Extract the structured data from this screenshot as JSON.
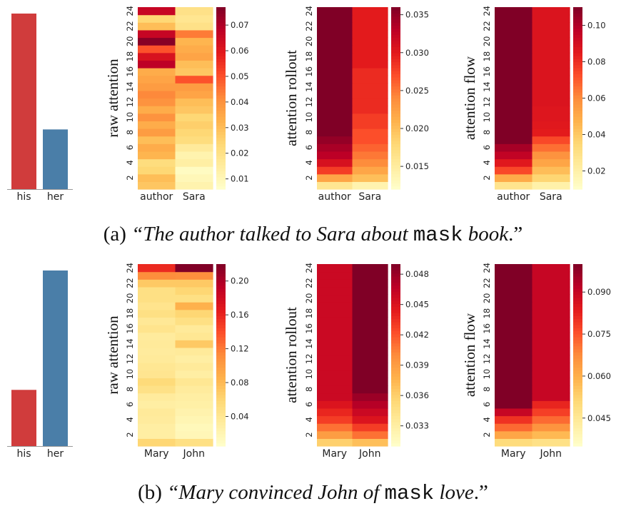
{
  "colormap": [
    "#ffffcc",
    "#ffeda0",
    "#fed976",
    "#feb24c",
    "#fd8d3c",
    "#fc4e2a",
    "#e31a1c",
    "#bd0026",
    "#800026"
  ],
  "colors": {
    "his": "#d03c3c",
    "her": "#4a7ea8"
  },
  "captions": [
    {
      "label": "(a)",
      "open_quote": "“",
      "before_mask": "The author talked to Sara about",
      "mask": "mask",
      "after_mask": "book",
      "close": ".”"
    },
    {
      "label": "(b)",
      "open_quote": "“",
      "before_mask": "Mary convinced John of",
      "mask": "mask",
      "after_mask": "love",
      "close": ".”"
    }
  ],
  "chart_data": [
    {
      "type": "bar",
      "categories": [
        "his",
        "her"
      ],
      "values": [
        1.0,
        0.34
      ]
    },
    {
      "type": "heatmap",
      "ylabel": "raw attention",
      "x": [
        "author",
        "Sara"
      ],
      "yticks": [
        2,
        4,
        6,
        8,
        10,
        12,
        14,
        16,
        18,
        20,
        22,
        24
      ],
      "cbar_ticks": [
        0.01,
        0.02,
        0.03,
        0.04,
        0.05,
        0.06,
        0.07
      ],
      "range": [
        0.006,
        0.077
      ],
      "values": [
        [
          0.028,
          0.012
        ],
        [
          0.03,
          0.01
        ],
        [
          0.024,
          0.008
        ],
        [
          0.022,
          0.014
        ],
        [
          0.032,
          0.012
        ],
        [
          0.034,
          0.016
        ],
        [
          0.03,
          0.022
        ],
        [
          0.038,
          0.024
        ],
        [
          0.034,
          0.026
        ],
        [
          0.04,
          0.024
        ],
        [
          0.034,
          0.028
        ],
        [
          0.04,
          0.03
        ],
        [
          0.042,
          0.036
        ],
        [
          0.038,
          0.038
        ],
        [
          0.036,
          0.05
        ],
        [
          0.034,
          0.028
        ],
        [
          0.068,
          0.03
        ],
        [
          0.062,
          0.036
        ],
        [
          0.05,
          0.034
        ],
        [
          0.076,
          0.032
        ],
        [
          0.066,
          0.044
        ],
        [
          0.03,
          0.02
        ],
        [
          0.024,
          0.018
        ],
        [
          0.066,
          0.02
        ]
      ]
    },
    {
      "type": "heatmap",
      "ylabel": "attention rollout",
      "x": [
        "author",
        "Sara"
      ],
      "yticks": [
        2,
        4,
        6,
        8,
        10,
        12,
        14,
        16,
        18,
        20,
        22,
        24
      ],
      "cbar_ticks": [
        0.015,
        0.02,
        0.025,
        0.03,
        0.035
      ],
      "range": [
        0.012,
        0.036
      ],
      "values": [
        [
          0.016,
          0.014
        ],
        [
          0.022,
          0.02
        ],
        [
          0.028,
          0.022
        ],
        [
          0.031,
          0.024
        ],
        [
          0.033,
          0.025
        ],
        [
          0.034,
          0.026
        ],
        [
          0.035,
          0.027
        ],
        [
          0.036,
          0.027
        ],
        [
          0.036,
          0.028
        ],
        [
          0.036,
          0.028
        ],
        [
          0.036,
          0.029
        ],
        [
          0.036,
          0.029
        ],
        [
          0.036,
          0.029
        ],
        [
          0.036,
          0.029
        ],
        [
          0.036,
          0.029
        ],
        [
          0.036,
          0.029
        ],
        [
          0.036,
          0.03
        ],
        [
          0.036,
          0.03
        ],
        [
          0.036,
          0.03
        ],
        [
          0.036,
          0.03
        ],
        [
          0.036,
          0.03
        ],
        [
          0.036,
          0.03
        ],
        [
          0.036,
          0.03
        ],
        [
          0.036,
          0.03
        ]
      ]
    },
    {
      "type": "heatmap",
      "ylabel": "attention flow",
      "x": [
        "author",
        "Sara"
      ],
      "yticks": [
        2,
        4,
        6,
        8,
        10,
        12,
        14,
        16,
        18,
        20,
        22,
        24
      ],
      "cbar_ticks": [
        0.02,
        0.04,
        0.06,
        0.08,
        0.1
      ],
      "range": [
        0.01,
        0.11
      ],
      "values": [
        [
          0.028,
          0.02
        ],
        [
          0.05,
          0.036
        ],
        [
          0.074,
          0.044
        ],
        [
          0.086,
          0.052
        ],
        [
          0.096,
          0.058
        ],
        [
          0.102,
          0.066
        ],
        [
          0.11,
          0.074
        ],
        [
          0.11,
          0.085
        ],
        [
          0.11,
          0.086
        ],
        [
          0.11,
          0.087
        ],
        [
          0.11,
          0.087
        ],
        [
          0.11,
          0.088
        ],
        [
          0.11,
          0.088
        ],
        [
          0.11,
          0.088
        ],
        [
          0.11,
          0.088
        ],
        [
          0.11,
          0.088
        ],
        [
          0.11,
          0.088
        ],
        [
          0.11,
          0.088
        ],
        [
          0.11,
          0.088
        ],
        [
          0.11,
          0.088
        ],
        [
          0.11,
          0.088
        ],
        [
          0.11,
          0.088
        ],
        [
          0.11,
          0.088
        ],
        [
          0.11,
          0.088
        ]
      ]
    },
    {
      "type": "bar",
      "categories": [
        "his",
        "her"
      ],
      "values": [
        0.32,
        1.0
      ]
    },
    {
      "type": "heatmap",
      "ylabel": "raw attention",
      "x": [
        "Mary",
        "John"
      ],
      "yticks": [
        2,
        4,
        6,
        8,
        10,
        12,
        14,
        16,
        18,
        20,
        22,
        24
      ],
      "cbar_ticks": [
        0.04,
        0.08,
        0.12,
        0.16,
        0.2
      ],
      "range": [
        0.005,
        0.22
      ],
      "values": [
        [
          0.06,
          0.05
        ],
        [
          0.03,
          0.018
        ],
        [
          0.03,
          0.016
        ],
        [
          0.034,
          0.02
        ],
        [
          0.036,
          0.024
        ],
        [
          0.03,
          0.028
        ],
        [
          0.034,
          0.03
        ],
        [
          0.048,
          0.034
        ],
        [
          0.056,
          0.04
        ],
        [
          0.042,
          0.03
        ],
        [
          0.04,
          0.036
        ],
        [
          0.036,
          0.03
        ],
        [
          0.034,
          0.036
        ],
        [
          0.036,
          0.07
        ],
        [
          0.034,
          0.04
        ],
        [
          0.044,
          0.036
        ],
        [
          0.038,
          0.05
        ],
        [
          0.05,
          0.06
        ],
        [
          0.044,
          0.086
        ],
        [
          0.05,
          0.05
        ],
        [
          0.05,
          0.06
        ],
        [
          0.07,
          0.07
        ],
        [
          0.112,
          0.11
        ],
        [
          0.158,
          0.22
        ]
      ]
    },
    {
      "type": "heatmap",
      "ylabel": "attention rollout",
      "x": [
        "Mary",
        "John"
      ],
      "yticks": [
        2,
        4,
        6,
        8,
        10,
        12,
        14,
        16,
        18,
        20,
        22,
        24
      ],
      "cbar_ticks": [
        0.033,
        0.036,
        0.039,
        0.042,
        0.045,
        0.048
      ],
      "range": [
        0.031,
        0.049
      ],
      "values": [
        [
          0.036,
          0.037
        ],
        [
          0.039,
          0.041
        ],
        [
          0.041,
          0.043
        ],
        [
          0.043,
          0.045
        ],
        [
          0.044,
          0.046
        ],
        [
          0.045,
          0.047
        ],
        [
          0.046,
          0.048
        ],
        [
          0.046,
          0.049
        ],
        [
          0.046,
          0.049
        ],
        [
          0.046,
          0.049
        ],
        [
          0.046,
          0.049
        ],
        [
          0.046,
          0.049
        ],
        [
          0.046,
          0.049
        ],
        [
          0.046,
          0.049
        ],
        [
          0.046,
          0.049
        ],
        [
          0.046,
          0.049
        ],
        [
          0.046,
          0.049
        ],
        [
          0.046,
          0.049
        ],
        [
          0.046,
          0.049
        ],
        [
          0.046,
          0.049
        ],
        [
          0.046,
          0.049
        ],
        [
          0.046,
          0.049
        ],
        [
          0.046,
          0.049
        ],
        [
          0.046,
          0.049
        ]
      ]
    },
    {
      "type": "heatmap",
      "ylabel": "attention flow",
      "x": [
        "Mary",
        "John"
      ],
      "yticks": [
        2,
        4,
        6,
        8,
        10,
        12,
        14,
        16,
        18,
        20,
        22,
        24
      ],
      "cbar_ticks": [
        0.045,
        0.06,
        0.075,
        0.09
      ],
      "range": [
        0.035,
        0.1
      ],
      "values": [
        [
          0.05,
          0.048
        ],
        [
          0.062,
          0.058
        ],
        [
          0.072,
          0.066
        ],
        [
          0.08,
          0.072
        ],
        [
          0.09,
          0.078
        ],
        [
          0.1,
          0.082
        ],
        [
          0.1,
          0.09
        ],
        [
          0.1,
          0.09
        ],
        [
          0.1,
          0.09
        ],
        [
          0.1,
          0.09
        ],
        [
          0.1,
          0.09
        ],
        [
          0.1,
          0.09
        ],
        [
          0.1,
          0.09
        ],
        [
          0.1,
          0.09
        ],
        [
          0.1,
          0.09
        ],
        [
          0.1,
          0.09
        ],
        [
          0.1,
          0.09
        ],
        [
          0.1,
          0.09
        ],
        [
          0.1,
          0.09
        ],
        [
          0.1,
          0.09
        ],
        [
          0.1,
          0.09
        ],
        [
          0.1,
          0.09
        ],
        [
          0.1,
          0.09
        ],
        [
          0.1,
          0.09
        ]
      ]
    }
  ]
}
